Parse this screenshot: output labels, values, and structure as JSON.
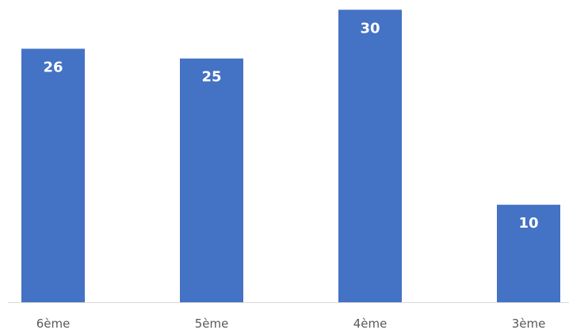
{
  "chart_data": {
    "type": "bar",
    "title": "",
    "xlabel": "",
    "ylabel": "",
    "categories": [
      "6ème",
      "5ème",
      "4ème",
      "3ème"
    ],
    "values": [
      26,
      25,
      30,
      10
    ],
    "data_labels": [
      "26",
      "25",
      "30",
      "10"
    ],
    "ylim": [
      0,
      31
    ],
    "grid": false,
    "legend": "none",
    "bar_color": "#4472C4",
    "label_color": "#FFFFFF",
    "axis_color": "#D9D9D9",
    "tick_label_color": "#595959"
  }
}
